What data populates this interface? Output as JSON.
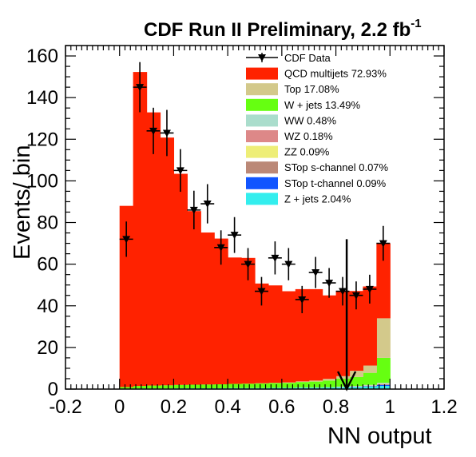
{
  "chart_data": {
    "type": "bar",
    "title": "CDF Run II Preliminary, 2.2 fb",
    "title_superscript": "-1",
    "xlabel": "NN output",
    "ylabel": "Events/ bin",
    "xlim": [
      -0.2,
      1.2
    ],
    "ylim": [
      0,
      165
    ],
    "xticks": [
      "-0.2",
      "0",
      "0.2",
      "0.4",
      "0.6",
      "0.8",
      "1",
      "1.2"
    ],
    "yticks": [
      "0",
      "20",
      "40",
      "60",
      "80",
      "100",
      "120",
      "140",
      "160"
    ],
    "bin_edges": [
      0,
      0.05,
      0.1,
      0.15,
      0.2,
      0.25,
      0.3,
      0.35,
      0.4,
      0.45,
      0.5,
      0.55,
      0.6,
      0.65,
      0.7,
      0.75,
      0.8,
      0.85,
      0.9,
      0.95,
      1.0
    ],
    "legend_position": "top-right",
    "series": [
      {
        "name": "Z + jets 2.04%",
        "color": "#33eeee",
        "values": [
          0.2,
          0.3,
          0.3,
          0.3,
          0.4,
          0.4,
          0.4,
          0.4,
          0.5,
          0.5,
          0.5,
          0.6,
          0.6,
          0.7,
          0.7,
          0.8,
          0.9,
          1.0,
          1.2,
          1.5
        ]
      },
      {
        "name": "STop t-channel 0.09%",
        "color": "#1155ff",
        "values": [
          0,
          0,
          0,
          0,
          0,
          0,
          0,
          0,
          0,
          0,
          0,
          0,
          0,
          0,
          0,
          0,
          0,
          0.1,
          0.2,
          0.5
        ]
      },
      {
        "name": "STop s-channel 0.07%",
        "color": "#bb8877",
        "values": [
          0,
          0,
          0,
          0,
          0,
          0,
          0,
          0,
          0,
          0,
          0,
          0,
          0,
          0,
          0,
          0,
          0,
          0.1,
          0.1,
          0.3
        ]
      },
      {
        "name": "ZZ 0.09%",
        "color": "#eeee77",
        "values": [
          0,
          0,
          0,
          0,
          0,
          0,
          0,
          0,
          0,
          0,
          0,
          0,
          0,
          0,
          0,
          0,
          0,
          0,
          0.1,
          0.1
        ]
      },
      {
        "name": "WZ 0.18%",
        "color": "#dd8888",
        "values": [
          0,
          0,
          0,
          0,
          0,
          0,
          0,
          0,
          0,
          0,
          0,
          0,
          0,
          0,
          0,
          0,
          0.1,
          0.1,
          0.1,
          0.2
        ]
      },
      {
        "name": "WW 0.48%",
        "color": "#aaddcc",
        "values": [
          0,
          0,
          0,
          0,
          0,
          0,
          0,
          0,
          0,
          0,
          0,
          0,
          0,
          0.1,
          0.1,
          0.1,
          0.2,
          0.2,
          0.3,
          0.4
        ]
      },
      {
        "name": "W + jets   13.49%",
        "color": "#66ff11",
        "values": [
          0.8,
          1.2,
          1.4,
          1.5,
          1.6,
          1.7,
          1.8,
          1.9,
          2.0,
          2.1,
          2.2,
          2.3,
          2.4,
          2.6,
          2.8,
          3.2,
          3.8,
          4.3,
          5.8,
          12.0
        ]
      },
      {
        "name": "Top 17.08%",
        "color": "#d3c98b",
        "values": [
          0,
          0,
          0,
          0,
          0,
          0,
          0,
          0,
          0,
          0,
          0.1,
          0.1,
          0.2,
          0.3,
          0.5,
          0.8,
          1.2,
          3.0,
          3.5,
          19.0
        ]
      },
      {
        "name": "QCD multijets 72.93%",
        "color": "#ff2200",
        "values": [
          87.0,
          150.8,
          131.2,
          119.0,
          101.4,
          83.4,
          73.0,
          70.0,
          60.7,
          60.4,
          47.9,
          46.8,
          43.8,
          44.3,
          43.9,
          40.1,
          40.8,
          38.3,
          38.0,
          36.0
        ]
      }
    ],
    "data_series": {
      "name": "CDF Data",
      "x": [
        0.025,
        0.075,
        0.125,
        0.175,
        0.225,
        0.275,
        0.325,
        0.375,
        0.425,
        0.475,
        0.525,
        0.575,
        0.625,
        0.675,
        0.725,
        0.775,
        0.825,
        0.875,
        0.925,
        0.975
      ],
      "y": [
        72,
        145,
        124,
        123,
        105,
        86,
        89,
        68,
        74,
        60,
        47,
        63,
        60,
        43,
        56,
        51,
        47,
        45,
        48,
        70
      ]
    },
    "cut_arrow": {
      "x": 0.84,
      "y_top": 72,
      "y_bottom": 0
    }
  }
}
